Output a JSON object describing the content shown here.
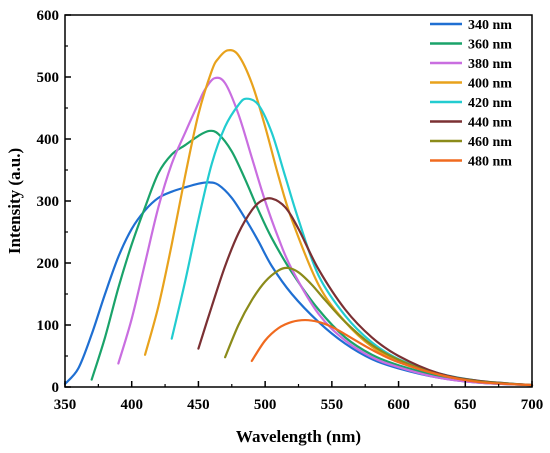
{
  "chart_data": {
    "type": "line",
    "xlabel": "Wavelength (nm)",
    "ylabel": "Intensity (a.u.)",
    "xlim": [
      350,
      700
    ],
    "ylim": [
      0,
      600
    ],
    "x_ticks": [
      "350",
      "400",
      "450",
      "500",
      "550",
      "600",
      "650",
      "700"
    ],
    "y_ticks": [
      "0",
      "100",
      "200",
      "300",
      "400",
      "500",
      "600"
    ],
    "grid": false,
    "legend_position": "top-right",
    "series": [
      {
        "name": "340 nm",
        "color": "#1f6fd2",
        "x": [
          350,
          360,
          370,
          380,
          390,
          400,
          410,
          420,
          430,
          440,
          450,
          458,
          465,
          475,
          485,
          495,
          505,
          520,
          540,
          560,
          580,
          600,
          630,
          660,
          700
        ],
        "y": [
          5,
          30,
          85,
          150,
          210,
          255,
          285,
          305,
          315,
          322,
          328,
          330,
          326,
          305,
          272,
          235,
          195,
          150,
          105,
          70,
          45,
          30,
          15,
          7,
          3
        ]
      },
      {
        "name": "360 nm",
        "color": "#1aa36a",
        "x": [
          370,
          380,
          390,
          400,
          410,
          420,
          430,
          440,
          450,
          458,
          465,
          475,
          485,
          495,
          505,
          520,
          540,
          560,
          580,
          600,
          630,
          660,
          700
        ],
        "y": [
          12,
          80,
          160,
          230,
          290,
          345,
          375,
          390,
          405,
          413,
          408,
          380,
          335,
          285,
          240,
          185,
          125,
          80,
          52,
          35,
          18,
          8,
          3
        ]
      },
      {
        "name": "380 nm",
        "color": "#c96ee0",
        "x": [
          390,
          400,
          410,
          420,
          430,
          440,
          450,
          455,
          462,
          470,
          480,
          490,
          500,
          510,
          520,
          540,
          560,
          580,
          600,
          630,
          660,
          700
        ],
        "y": [
          38,
          110,
          200,
          290,
          360,
          410,
          458,
          480,
          498,
          490,
          440,
          370,
          300,
          240,
          190,
          118,
          75,
          48,
          32,
          15,
          7,
          3
        ]
      },
      {
        "name": "400 nm",
        "color": "#e8a21c",
        "x": [
          410,
          420,
          430,
          440,
          450,
          460,
          465,
          472,
          480,
          490,
          500,
          510,
          520,
          540,
          560,
          580,
          600,
          630,
          660,
          700
        ],
        "y": [
          52,
          130,
          230,
          340,
          440,
          510,
          530,
          543,
          535,
          490,
          420,
          340,
          270,
          165,
          105,
          65,
          42,
          20,
          9,
          3
        ]
      },
      {
        "name": "420 nm",
        "color": "#22ccd0",
        "x": [
          430,
          440,
          450,
          460,
          470,
          480,
          486,
          495,
          505,
          515,
          525,
          540,
          560,
          580,
          600,
          630,
          660,
          700
        ],
        "y": [
          78,
          170,
          270,
          360,
          420,
          455,
          465,
          455,
          410,
          340,
          270,
          180,
          115,
          72,
          45,
          22,
          10,
          3
        ]
      },
      {
        "name": "440 nm",
        "color": "#7b3033",
        "x": [
          450,
          460,
          470,
          480,
          490,
          497,
          505,
          515,
          525,
          540,
          560,
          580,
          600,
          630,
          660,
          700
        ],
        "y": [
          62,
          130,
          195,
          248,
          285,
          300,
          304,
          290,
          255,
          190,
          125,
          80,
          50,
          22,
          10,
          3
        ]
      },
      {
        "name": "460 nm",
        "color": "#8b8b1a",
        "x": [
          470,
          480,
          490,
          500,
          510,
          517,
          525,
          535,
          545,
          560,
          580,
          600,
          630,
          660,
          700
        ],
        "y": [
          48,
          100,
          140,
          170,
          188,
          192,
          185,
          165,
          140,
          105,
          68,
          44,
          20,
          9,
          3
        ]
      },
      {
        "name": "480 nm",
        "color": "#f06a1f",
        "x": [
          490,
          500,
          510,
          520,
          530,
          540,
          550,
          560,
          580,
          600,
          630,
          660,
          700
        ],
        "y": [
          42,
          75,
          95,
          105,
          108,
          105,
          97,
          85,
          60,
          40,
          20,
          8,
          3
        ]
      }
    ]
  }
}
